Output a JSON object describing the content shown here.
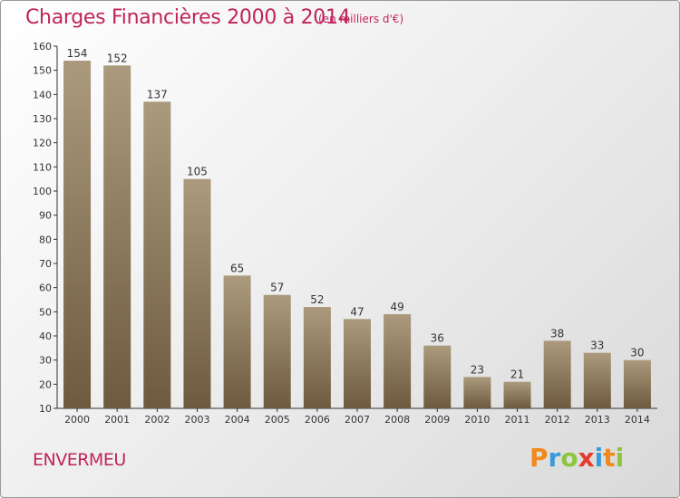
{
  "header": {
    "title": "Charges Financières 2000 à 2014",
    "unit": "(en milliers d'€)"
  },
  "footer": {
    "commune": "ENVERMEU",
    "logo_letters": [
      "P",
      "r",
      "o",
      "x",
      "i",
      "t",
      "i"
    ],
    "logo_colors": [
      "#f08a1c",
      "#3a9ad9",
      "#8cc63f",
      "#e63b2e",
      "#3a9ad9",
      "#f08a1c",
      "#8cc63f"
    ]
  },
  "chart_data": {
    "type": "bar",
    "title": "Charges Financières 2000 à 2014",
    "subtitle": "(en milliers d'€)",
    "categories": [
      "2000",
      "2001",
      "2002",
      "2003",
      "2004",
      "2005",
      "2006",
      "2007",
      "2008",
      "2009",
      "2010",
      "2011",
      "2012",
      "2013",
      "2014"
    ],
    "values": [
      154,
      152,
      137,
      105,
      65,
      57,
      52,
      47,
      49,
      36,
      23,
      21,
      38,
      33,
      30
    ],
    "ylim": [
      10,
      160
    ],
    "yticks": [
      10,
      20,
      30,
      40,
      50,
      60,
      70,
      80,
      90,
      100,
      110,
      120,
      130,
      140,
      150,
      160
    ],
    "grid": false,
    "colors": {
      "bar_top": "#ab9a7c",
      "bar_bottom": "#6d5a3f",
      "axis": "#333333"
    }
  }
}
